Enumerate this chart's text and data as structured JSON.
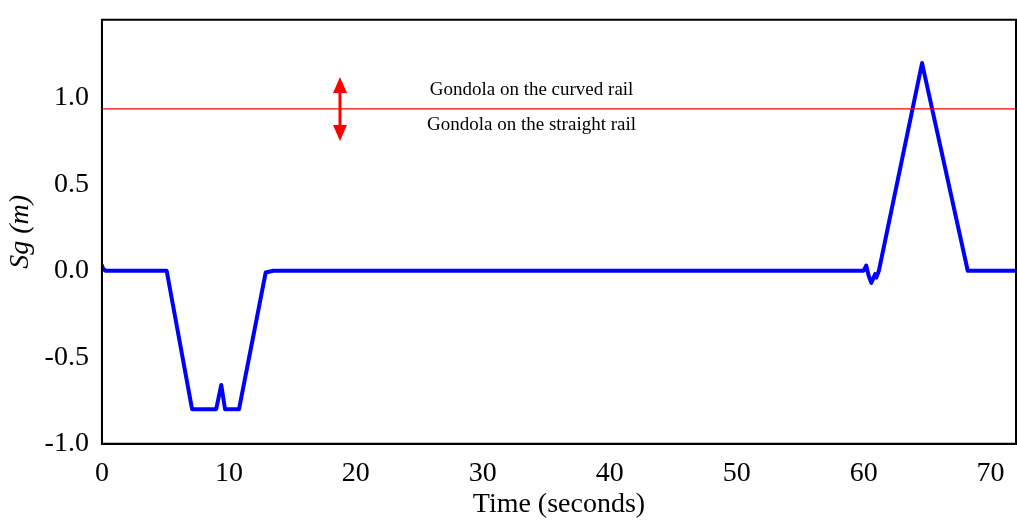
{
  "chart_data": {
    "type": "line",
    "xlabel": "Time (seconds)",
    "ylabel": "Sg (m)",
    "xlim": [
      0,
      72
    ],
    "xticks": [
      0,
      10,
      20,
      30,
      40,
      50,
      60,
      70
    ],
    "ylim": [
      -1,
      1.45
    ],
    "yticks": [
      {
        "value": -1,
        "label": "-1.0"
      },
      {
        "value": -0.5,
        "label": "-0.5"
      },
      {
        "value": 0,
        "label": "0.0"
      },
      {
        "value": 0.5,
        "label": "0.5"
      },
      {
        "value": 1,
        "label": "1.0"
      }
    ],
    "grid": false,
    "legend": false,
    "marker": "none",
    "line_style": "solid",
    "series": [
      {
        "color": "#0000ff",
        "x": [
          0,
          0.1,
          0.3,
          5.1,
          7.1,
          9.0,
          9.4,
          9.7,
          10.4,
          10.8,
          12.9,
          13.5,
          60.0,
          60.2,
          60.4,
          60.6,
          60.9,
          61.0,
          61.2,
          64.6,
          68.2,
          72
        ],
        "values": [
          0.03,
          0.01,
          0,
          0,
          -0.8,
          -0.8,
          -0.66,
          -0.8,
          -0.8,
          -0.8,
          -0.01,
          0,
          0,
          0.03,
          -0.03,
          -0.07,
          -0.02,
          -0.04,
          0,
          1.2,
          0,
          0
        ]
      }
    ],
    "ref_lines": [
      {
        "axis": "y",
        "value": 0.935,
        "color": "#ff0000",
        "line_style": "solid"
      }
    ],
    "annotations": [
      "Gondola on the curved rail",
      "Gondola on the straight rail"
    ]
  }
}
